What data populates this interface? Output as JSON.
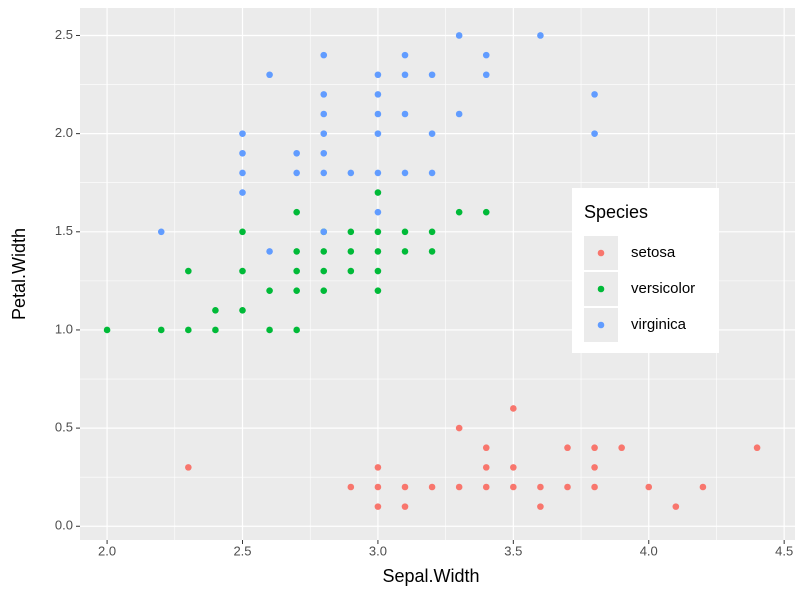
{
  "chart_data": {
    "type": "scatter",
    "x_label": "Sepal.Width",
    "y_label": "Petal.Width",
    "xlim": [
      1.9,
      4.54
    ],
    "ylim": [
      -0.07,
      2.64
    ],
    "xticks": [
      {
        "value": 2.0,
        "label": "2.0"
      },
      2.5,
      {
        "value": 3.0,
        "label": "3.0"
      },
      3.5,
      {
        "value": 4.0,
        "label": "4.0"
      },
      4.5
    ],
    "yticks": [
      {
        "value": 0.0,
        "label": "0.0"
      },
      0.5,
      {
        "value": 1.0,
        "label": "1.0"
      },
      1.5,
      {
        "value": 2.0,
        "label": "2.0"
      },
      2.5
    ],
    "grid": true,
    "legend": {
      "title": "Species",
      "position": "right"
    },
    "series": [
      {
        "name": "setosa",
        "color": "#F8766D",
        "x": [
          2.3,
          2.9,
          3.0,
          3.0,
          3.0,
          3.1,
          3.1,
          3.2,
          3.3,
          3.3,
          3.4,
          3.4,
          3.4,
          3.5,
          3.5,
          3.5,
          3.6,
          3.6,
          3.7,
          3.7,
          3.8,
          3.8,
          3.8,
          3.9,
          4.0,
          4.1,
          4.2,
          4.4
        ],
        "values": [
          0.3,
          0.2,
          0.1,
          0.2,
          0.3,
          0.1,
          0.2,
          0.2,
          0.2,
          0.5,
          0.2,
          0.3,
          0.4,
          0.2,
          0.3,
          0.6,
          0.1,
          0.2,
          0.2,
          0.4,
          0.2,
          0.3,
          0.4,
          0.4,
          0.2,
          0.1,
          0.2,
          0.4
        ]
      },
      {
        "name": "versicolor",
        "color": "#00BA38",
        "x": [
          2.0,
          2.2,
          2.3,
          2.3,
          2.4,
          2.4,
          2.5,
          2.5,
          2.5,
          2.6,
          2.6,
          2.7,
          2.7,
          2.7,
          2.7,
          2.7,
          2.8,
          2.8,
          2.8,
          2.8,
          2.9,
          2.9,
          2.9,
          3.0,
          3.0,
          3.0,
          3.0,
          3.0,
          3.1,
          3.1,
          3.2,
          3.2,
          3.3,
          3.4
        ],
        "values": [
          1.0,
          1.0,
          1.0,
          1.3,
          1.0,
          1.1,
          1.1,
          1.3,
          1.5,
          1.0,
          1.2,
          1.0,
          1.2,
          1.3,
          1.4,
          1.6,
          1.2,
          1.3,
          1.4,
          1.5,
          1.3,
          1.4,
          1.5,
          1.2,
          1.3,
          1.4,
          1.5,
          1.7,
          1.4,
          1.5,
          1.4,
          1.5,
          1.6,
          1.6
        ]
      },
      {
        "name": "virginica",
        "color": "#619CFF",
        "x": [
          2.2,
          2.5,
          2.5,
          2.5,
          2.5,
          2.6,
          2.6,
          2.7,
          2.7,
          2.8,
          2.8,
          2.8,
          2.8,
          2.8,
          2.8,
          2.8,
          2.9,
          3.0,
          3.0,
          3.0,
          3.0,
          3.0,
          3.0,
          3.1,
          3.1,
          3.1,
          3.1,
          3.2,
          3.2,
          3.2,
          3.3,
          3.3,
          3.4,
          3.4,
          3.6,
          3.8,
          3.8
        ],
        "values": [
          1.5,
          1.7,
          1.8,
          1.9,
          2.0,
          1.4,
          2.3,
          1.8,
          1.9,
          1.5,
          1.8,
          1.9,
          2.0,
          2.1,
          2.2,
          2.4,
          1.8,
          1.6,
          1.8,
          2.0,
          2.1,
          2.2,
          2.3,
          1.8,
          2.1,
          2.3,
          2.4,
          1.8,
          2.0,
          2.3,
          2.1,
          2.5,
          2.3,
          2.4,
          2.5,
          2.0,
          2.2
        ]
      }
    ]
  }
}
